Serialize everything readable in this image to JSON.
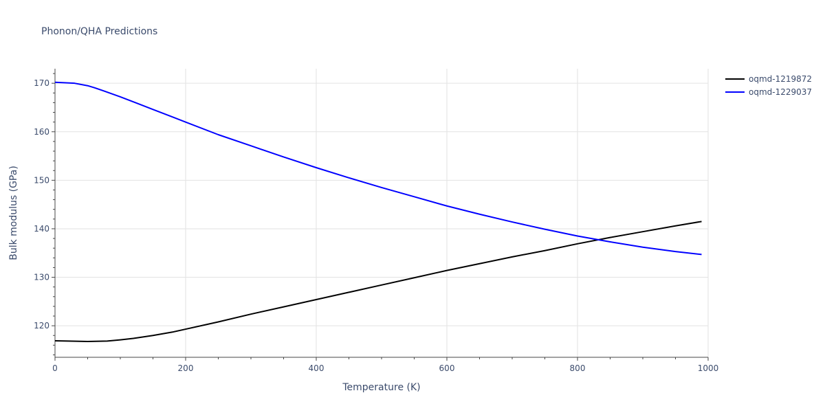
{
  "chart_data": {
    "type": "line",
    "title": "Phonon/QHA Predictions",
    "xlabel": "Temperature (K)",
    "ylabel": "Bulk modulus (GPa)",
    "xlim": [
      0,
      1000
    ],
    "ylim": [
      113.5,
      173
    ],
    "x_ticks": [
      0,
      200,
      400,
      600,
      800,
      1000
    ],
    "y_ticks": [
      120,
      130,
      140,
      150,
      160,
      170
    ],
    "grid": true,
    "legend_position": "top-right",
    "series": [
      {
        "name": "oqmd-1219872",
        "color": "#000000",
        "x": [
          0,
          20,
          50,
          80,
          100,
          120,
          150,
          180,
          200,
          250,
          300,
          350,
          400,
          450,
          500,
          550,
          600,
          650,
          700,
          750,
          800,
          850,
          900,
          950,
          990
        ],
        "y": [
          116.9,
          116.85,
          116.75,
          116.85,
          117.1,
          117.4,
          118.0,
          118.7,
          119.3,
          120.8,
          122.4,
          123.9,
          125.4,
          126.9,
          128.4,
          129.9,
          131.4,
          132.8,
          134.2,
          135.5,
          136.9,
          138.2,
          139.4,
          140.6,
          141.5
        ]
      },
      {
        "name": "oqmd-1229037",
        "color": "#0000ff",
        "x": [
          0,
          30,
          50,
          60,
          75,
          100,
          125,
          150,
          175,
          200,
          250,
          300,
          350,
          400,
          450,
          500,
          550,
          600,
          650,
          700,
          750,
          800,
          850,
          900,
          950,
          990
        ],
        "y": [
          170.2,
          170.0,
          169.5,
          169.1,
          168.4,
          167.2,
          165.9,
          164.6,
          163.3,
          162.0,
          159.4,
          157.1,
          154.8,
          152.6,
          150.5,
          148.5,
          146.6,
          144.7,
          143.0,
          141.4,
          139.9,
          138.5,
          137.3,
          136.2,
          135.3,
          134.7
        ]
      }
    ]
  }
}
